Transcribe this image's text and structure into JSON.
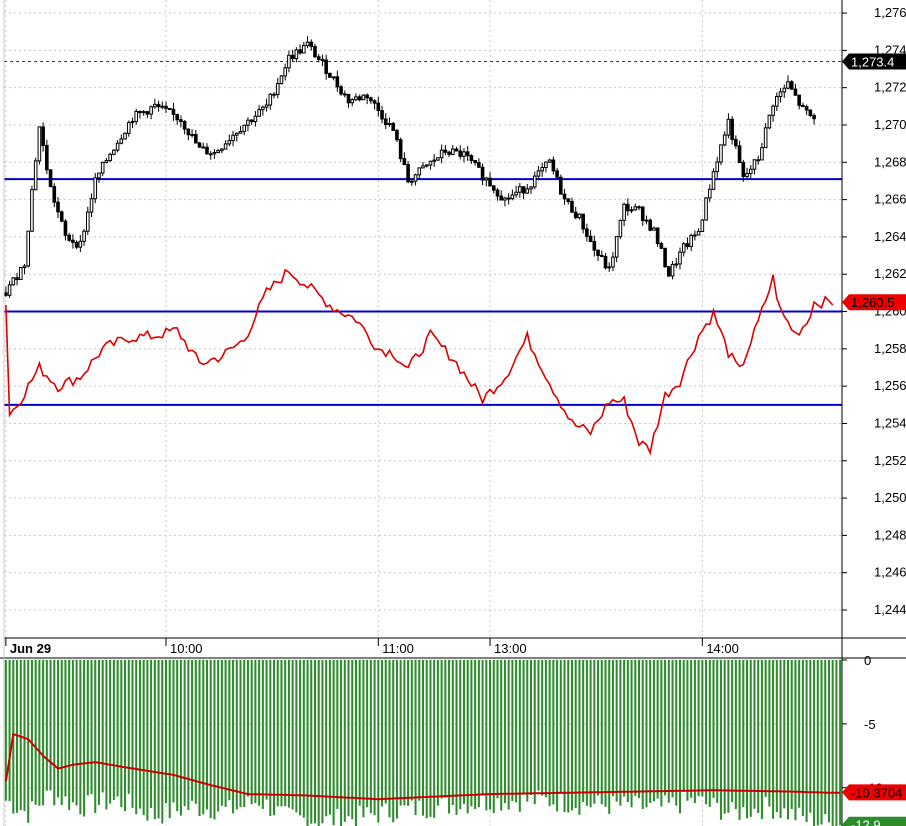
{
  "chart_data": [
    {
      "type": "candlestick",
      "y_ticks": [
        "1,276",
        "1,274",
        "1,272",
        "1,270",
        "1,268",
        "1,266",
        "1,264",
        "1,262",
        "1,260",
        "1,258",
        "1,256",
        "1,254",
        "1,252",
        "1,250",
        "1,248",
        "1,246",
        "1,244"
      ],
      "y_tick_values": [
        1276,
        1274,
        1272,
        1270,
        1268,
        1266,
        1264,
        1262,
        1260,
        1258,
        1256,
        1254,
        1252,
        1250,
        1248,
        1246,
        1244
      ],
      "ylim": [
        1242.5,
        1276.7
      ],
      "x_tick_labels": [
        "Jun 29",
        "10:00",
        "11:00",
        "13:00",
        "14:00"
      ],
      "x_tick_index": [
        0,
        43,
        100,
        130,
        187
      ],
      "n_bars": 225,
      "grid": true,
      "horizontal_lines": [
        1267.1,
        1260.0,
        1255.0
      ],
      "reference_line": 1273.4,
      "last_price_tag": {
        "label": "1,273.4",
        "value": 1273.4
      },
      "overlay_tag": {
        "label": "1,260.5",
        "value": 1260.5
      },
      "price_keypoints": [
        [
          0,
          1261.0
        ],
        [
          5,
          1262.6
        ],
        [
          7,
          1266.5
        ],
        [
          9,
          1269.9
        ],
        [
          12,
          1266.6
        ],
        [
          16,
          1264.0
        ],
        [
          20,
          1263.6
        ],
        [
          24,
          1267.0
        ],
        [
          28,
          1268.5
        ],
        [
          34,
          1270.4
        ],
        [
          40,
          1271.0
        ],
        [
          47,
          1270.3
        ],
        [
          52,
          1268.7
        ],
        [
          56,
          1268.5
        ],
        [
          62,
          1269.7
        ],
        [
          70,
          1271.0
        ],
        [
          76,
          1273.6
        ],
        [
          81,
          1274.3
        ],
        [
          86,
          1273.0
        ],
        [
          92,
          1271.3
        ],
        [
          97,
          1271.6
        ],
        [
          104,
          1269.7
        ],
        [
          108,
          1267.0
        ],
        [
          113,
          1267.8
        ],
        [
          118,
          1268.6
        ],
        [
          123,
          1268.4
        ],
        [
          128,
          1267.3
        ],
        [
          134,
          1266.0
        ],
        [
          140,
          1266.7
        ],
        [
          146,
          1268.0
        ],
        [
          150,
          1266.0
        ],
        [
          154,
          1265.0
        ],
        [
          158,
          1263.3
        ],
        [
          162,
          1262.2
        ],
        [
          166,
          1265.6
        ],
        [
          170,
          1265.4
        ],
        [
          174,
          1264.3
        ],
        [
          178,
          1262.0
        ],
        [
          182,
          1263.4
        ],
        [
          186,
          1264.3
        ],
        [
          190,
          1267.5
        ],
        [
          194,
          1270.2
        ],
        [
          198,
          1267.1
        ],
        [
          202,
          1268.2
        ],
        [
          206,
          1271.2
        ],
        [
          210,
          1272.2
        ],
        [
          214,
          1270.8
        ],
        [
          217,
          1270.3
        ]
      ],
      "overlay_keypoints": [
        [
          0,
          1260.5
        ],
        [
          1,
          1254.5
        ],
        [
          3,
          1255.0
        ],
        [
          6,
          1256.0
        ],
        [
          9,
          1257.0
        ],
        [
          14,
          1256.0
        ],
        [
          20,
          1256.5
        ],
        [
          26,
          1258.0
        ],
        [
          33,
          1258.6
        ],
        [
          40,
          1258.7
        ],
        [
          46,
          1259.0
        ],
        [
          52,
          1257.2
        ],
        [
          58,
          1257.6
        ],
        [
          64,
          1258.5
        ],
        [
          70,
          1261.0
        ],
        [
          76,
          1262.2
        ],
        [
          82,
          1261.2
        ],
        [
          88,
          1260.2
        ],
        [
          94,
          1259.6
        ],
        [
          100,
          1258.0
        ],
        [
          104,
          1257.8
        ],
        [
          108,
          1256.9
        ],
        [
          114,
          1258.7
        ],
        [
          120,
          1257.5
        ],
        [
          128,
          1255.3
        ],
        [
          134,
          1256.5
        ],
        [
          140,
          1258.6
        ],
        [
          146,
          1256.2
        ],
        [
          152,
          1254.0
        ],
        [
          157,
          1253.5
        ],
        [
          162,
          1255.2
        ],
        [
          166,
          1255.2
        ],
        [
          170,
          1253.0
        ],
        [
          173,
          1252.6
        ],
        [
          177,
          1255.5
        ],
        [
          181,
          1256.3
        ],
        [
          186,
          1258.7
        ],
        [
          190,
          1259.9
        ],
        [
          194,
          1257.8
        ],
        [
          197,
          1256.8
        ],
        [
          202,
          1259.4
        ],
        [
          206,
          1261.8
        ],
        [
          208,
          1260.0
        ],
        [
          212,
          1258.8
        ],
        [
          215,
          1259.4
        ],
        [
          217,
          1260.5
        ],
        [
          222,
          1260.5
        ]
      ]
    },
    {
      "type": "bar",
      "y_ticks": [
        "0",
        "-5",
        "-10"
      ],
      "y_tick_values": [
        0,
        -5,
        -10
      ],
      "ylim": [
        -13.0,
        0.0
      ],
      "line_tag": {
        "label": "-10.3704",
        "value": -10.3704
      },
      "bar_tag": {
        "label": "-12.9",
        "value": -12.9
      },
      "bar_keypoints": [
        [
          0,
          -11.0
        ],
        [
          6,
          -12.0
        ],
        [
          12,
          -10.5
        ],
        [
          20,
          -11.5
        ],
        [
          30,
          -11.0
        ],
        [
          40,
          -12.2
        ],
        [
          50,
          -11.5
        ],
        [
          60,
          -11.8
        ],
        [
          68,
          -11.0
        ],
        [
          75,
          -12.3
        ],
        [
          85,
          -12.6
        ],
        [
          95,
          -12.3
        ],
        [
          105,
          -11.8
        ],
        [
          115,
          -11.5
        ],
        [
          125,
          -11.2
        ],
        [
          135,
          -11.0
        ],
        [
          145,
          -11.0
        ],
        [
          155,
          -11.3
        ],
        [
          165,
          -11.4
        ],
        [
          175,
          -11.6
        ],
        [
          185,
          -11.0
        ],
        [
          195,
          -12.0
        ],
        [
          205,
          -11.5
        ],
        [
          215,
          -12.5
        ],
        [
          222,
          -12.9
        ]
      ],
      "avg_line_keypoints": [
        [
          0,
          -9.5
        ],
        [
          2,
          -5.8
        ],
        [
          6,
          -6.2
        ],
        [
          10,
          -7.5
        ],
        [
          14,
          -8.5
        ],
        [
          18,
          -8.2
        ],
        [
          24,
          -8.0
        ],
        [
          32,
          -8.4
        ],
        [
          45,
          -9.0
        ],
        [
          55,
          -9.8
        ],
        [
          65,
          -10.5
        ],
        [
          80,
          -10.6
        ],
        [
          100,
          -10.9
        ],
        [
          115,
          -10.7
        ],
        [
          130,
          -10.5
        ],
        [
          150,
          -10.4
        ],
        [
          170,
          -10.3
        ],
        [
          190,
          -10.2
        ],
        [
          210,
          -10.3
        ],
        [
          222,
          -10.4
        ]
      ]
    }
  ],
  "colors": {
    "candle": "#000000",
    "overlay": "#dd0000",
    "hlines": "#0000cc",
    "reference": "#cc0000",
    "bars": "#2c8c2c",
    "avg_line": "#cc0000",
    "grid": "#c8c8c8"
  }
}
